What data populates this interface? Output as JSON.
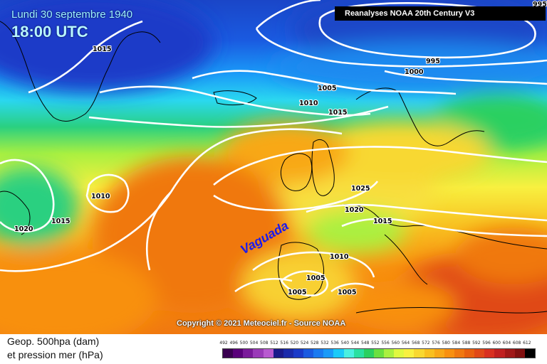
{
  "header": {
    "date": "Lundi 30 septembre 1940",
    "time": "18:00 UTC"
  },
  "source": "Reanalyses NOAA 20th Century V3",
  "copyright": "Copyright © 2021 Meteociel.fr - Source NOAA",
  "footer": {
    "line1": "Geop. 500hpa (dam)",
    "line2": "et pression mer (hPa)"
  },
  "annotation": "Vaguada",
  "isobar_labels": {
    "l995_top": "995",
    "l995": "995",
    "l1000": "1000",
    "l1005_north": "1005",
    "l1010_north": "1010",
    "l1015_north": "1015",
    "l1015_greenland": "1015",
    "l1010_atl": "1010",
    "l1015_west": "1015",
    "l1020_west": "1020",
    "l1025": "1025",
    "l1020_fr": "1020",
    "l1015_alps": "1015",
    "l1010_iberia": "1010",
    "l1005_iberia": "1005",
    "l1005_sw": "1005",
    "l1005_med": "1005"
  },
  "scale": {
    "labels": [
      "492",
      "496",
      "500",
      "504",
      "508",
      "512",
      "516",
      "520",
      "524",
      "528",
      "532",
      "536",
      "540",
      "544",
      "548",
      "552",
      "556",
      "560",
      "564",
      "568",
      "572",
      "576",
      "580",
      "584",
      "588",
      "592",
      "596",
      "600",
      "604",
      "608",
      "612"
    ],
    "colors": [
      "#3a0050",
      "#5a007a",
      "#7a1a9a",
      "#9a3ab8",
      "#b85ad0",
      "#1a1a8a",
      "#1a2aaa",
      "#1a3ac8",
      "#1a5ae0",
      "#1a7af0",
      "#1a9af8",
      "#1acaf8",
      "#4af0e0",
      "#2ae0a0",
      "#2ad060",
      "#6ae040",
      "#aaf040",
      "#e0f840",
      "#f8f040",
      "#f8d830",
      "#f8c020",
      "#f8a818",
      "#f89010",
      "#f07810",
      "#e86010",
      "#e04818",
      "#d83020",
      "#c02020",
      "#a01818",
      "#801010",
      "#000000"
    ]
  },
  "colors": {
    "deep_blue": "#1a46c8",
    "mid_blue": "#1a7af0",
    "cyan": "#2ad8f0",
    "green": "#6ae040",
    "yellow": "#f8f040",
    "orange": "#f89010",
    "red": "#e04818",
    "coast": "#000000",
    "isobar": "#ffffff"
  }
}
